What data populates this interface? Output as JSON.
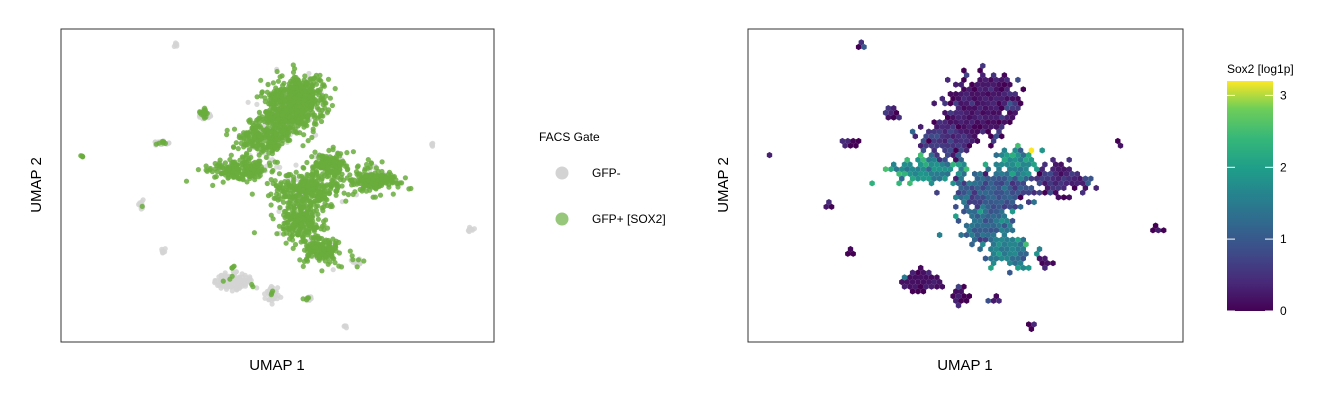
{
  "chart_data": [
    {
      "type": "scatter",
      "xlabel": "UMAP 1",
      "ylabel": "UMAP 2",
      "legend": {
        "title": "FACS Gate",
        "placement": "right",
        "entries": [
          {
            "label": "GFP-",
            "color": "#d3d3d3"
          },
          {
            "label": "GFP+ [SOX2]",
            "color": "#6aad3d"
          }
        ]
      },
      "grid": false
    },
    {
      "type": "heatmap",
      "xlabel": "UMAP 1",
      "ylabel": "UMAP 2",
      "colorbar": {
        "title": "Sox2 [log1p]",
        "colormap": "viridis",
        "range": [
          0,
          3.2
        ],
        "ticks": [
          "0",
          "1",
          "2",
          "3"
        ],
        "tick_values": [
          0,
          1,
          2,
          3
        ],
        "placement": "right"
      },
      "grid": false
    }
  ],
  "colors": {
    "gfp_neg": "#d3d3d3",
    "gfp_pos": "#6aad3d",
    "frame": "#333333"
  }
}
